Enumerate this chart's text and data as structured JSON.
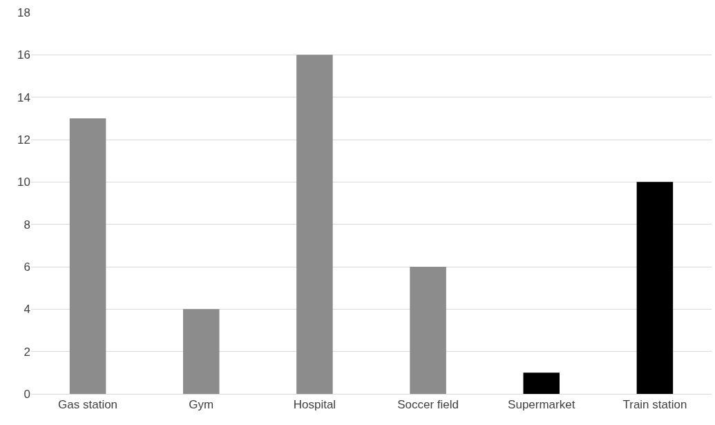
{
  "chart_data": {
    "type": "bar",
    "categories": [
      "Gas station",
      "Gym",
      "Hospital",
      "Soccer field",
      "Supermarket",
      "Train station"
    ],
    "values": [
      13,
      4,
      16,
      6,
      1,
      10
    ],
    "colors": [
      "#8c8c8c",
      "#8c8c8c",
      "#8c8c8c",
      "#8c8c8c",
      "#000000",
      "#000000"
    ],
    "ylim": [
      0,
      18
    ],
    "yticks": [
      0,
      2,
      4,
      6,
      8,
      10,
      12,
      14,
      16,
      18
    ],
    "grid": "y"
  }
}
